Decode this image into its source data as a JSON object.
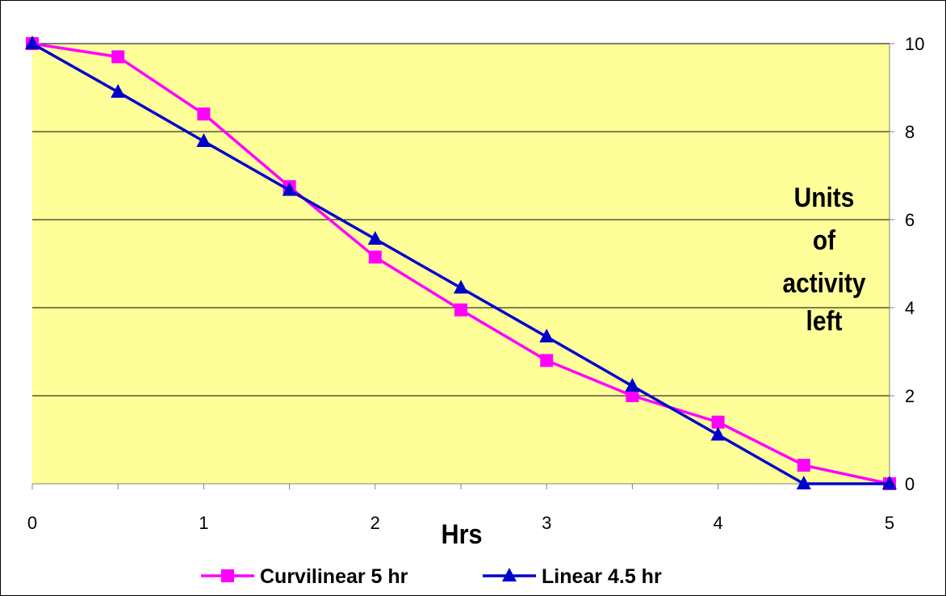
{
  "chart_data": {
    "type": "line",
    "title": "",
    "xlabel": "Hrs",
    "ylabel_lines": [
      "Units",
      "of",
      "activity",
      "left"
    ],
    "x": [
      0,
      0.5,
      1,
      1.5,
      2,
      2.5,
      3,
      3.5,
      4,
      4.5,
      5
    ],
    "x_tick_labels": [
      "0",
      "1",
      "2",
      "3",
      "4",
      "5"
    ],
    "x_tick_values": [
      0,
      1,
      2,
      3,
      4,
      5
    ],
    "y_tick_labels": [
      "0",
      "2",
      "4",
      "6",
      "8",
      "10"
    ],
    "y_tick_values": [
      0,
      2,
      4,
      6,
      8,
      10
    ],
    "xlim": [
      0,
      5
    ],
    "ylim": [
      0,
      10
    ],
    "y_axis_side": "right",
    "grid": "horizontal",
    "plot_background": "#ffff99",
    "legend_position": "bottom",
    "series": [
      {
        "name": "Curvilinear 5 hr",
        "color": "#ff00ff",
        "marker": "square",
        "values": [
          10,
          9.7,
          8.4,
          6.75,
          5.15,
          3.95,
          2.8,
          2.0,
          1.4,
          0.42,
          0
        ]
      },
      {
        "name": "Linear 4.5 hr",
        "color": "#0000cc",
        "marker": "triangle",
        "values": [
          10,
          8.9,
          7.78,
          6.67,
          5.56,
          4.45,
          3.34,
          2.22,
          1.11,
          0,
          0
        ]
      }
    ]
  }
}
